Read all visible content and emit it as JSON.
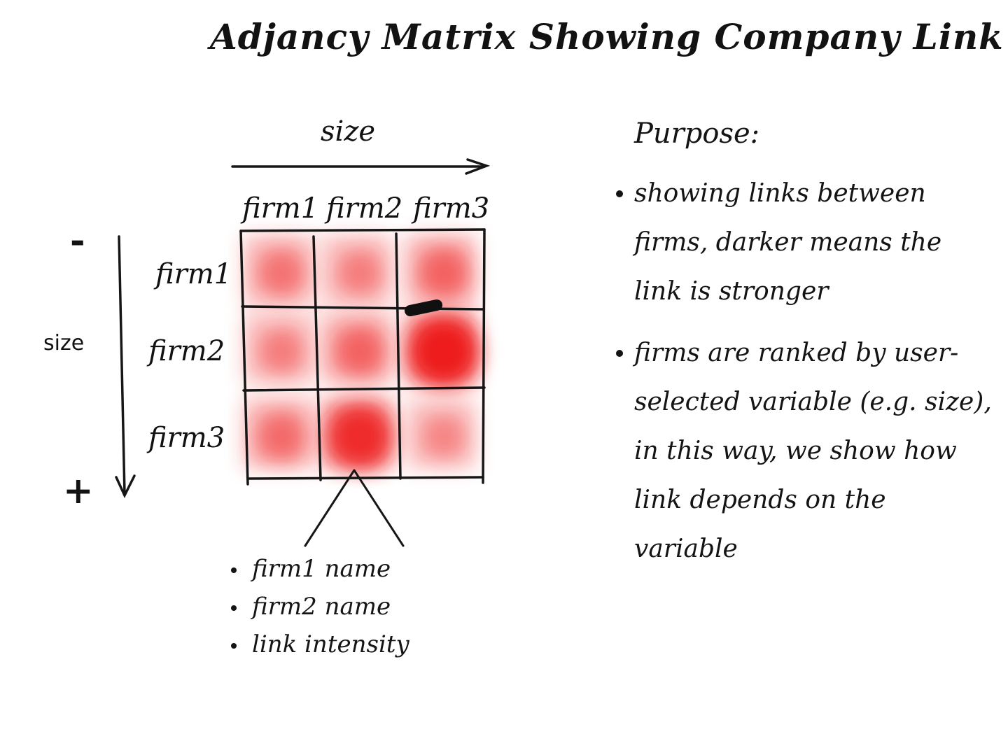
{
  "title": "Adjancy Matrix Showing Company Link",
  "top_axis": {
    "label": "size"
  },
  "left_axis": {
    "label": "size",
    "start": "-",
    "end": "+"
  },
  "matrix": {
    "columns": [
      "firm1",
      "firm2",
      "firm3"
    ],
    "rows": [
      "firm1",
      "firm2",
      "firm3"
    ],
    "intensity": [
      [
        0.35,
        0.3,
        0.45
      ],
      [
        0.3,
        0.45,
        1.0
      ],
      [
        0.4,
        0.85,
        0.25
      ]
    ],
    "color": "#ee1b1b"
  },
  "tooltip_fields": [
    "firm1 name",
    "firm2 name",
    "link intensity"
  ],
  "purpose": {
    "heading": "Purpose:",
    "points": [
      "showing links between firms, darker means the link is stronger",
      "firms are ranked by user-selected variable (e.g. size), in this way, we show how link depends on the variable"
    ]
  }
}
